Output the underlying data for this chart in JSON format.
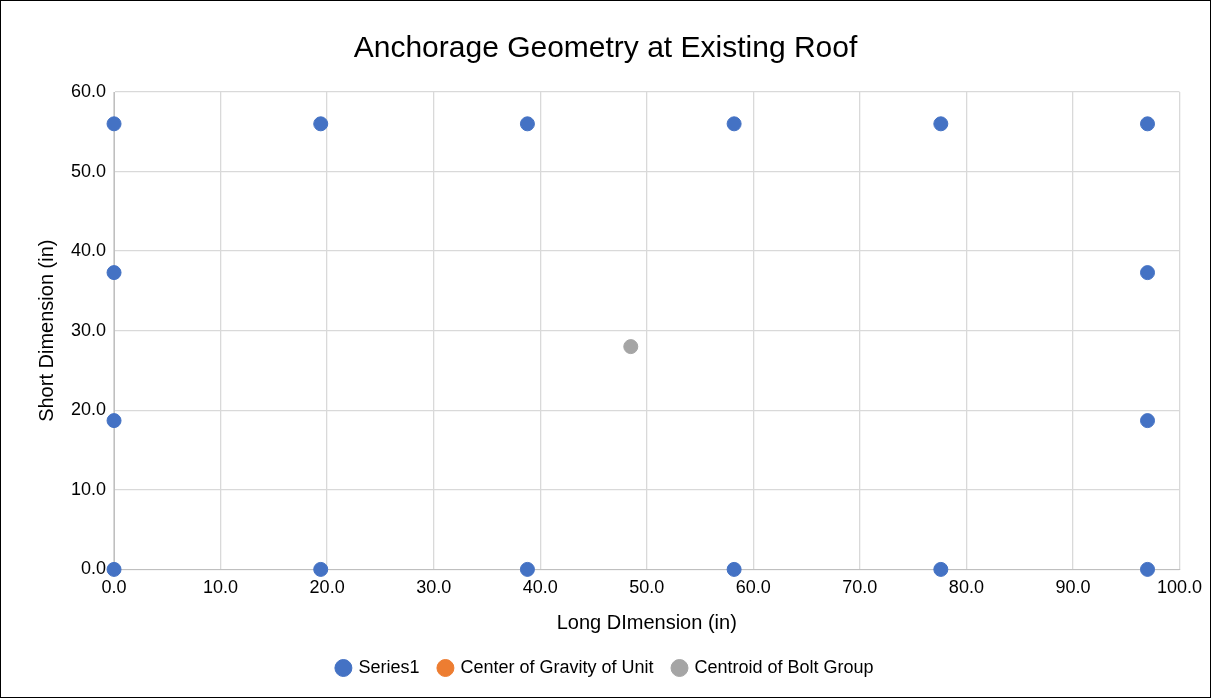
{
  "chart_data": {
    "type": "scatter",
    "title": "Anchorage Geometry at Existing Roof",
    "xlabel": "Long DImension (in)",
    "ylabel": "Short Dimension (in)",
    "xlim": [
      0,
      100
    ],
    "ylim": [
      0,
      60
    ],
    "xticks": [
      {
        "value": 0,
        "label": "0.0"
      },
      {
        "value": 10,
        "label": "10.0"
      },
      {
        "value": 20,
        "label": "20.0"
      },
      {
        "value": 30,
        "label": "30.0"
      },
      {
        "value": 40,
        "label": "40.0"
      },
      {
        "value": 50,
        "label": "50.0"
      },
      {
        "value": 60,
        "label": "60.0"
      },
      {
        "value": 70,
        "label": "70.0"
      },
      {
        "value": 80,
        "label": "80.0"
      },
      {
        "value": 90,
        "label": "90.0"
      },
      {
        "value": 100,
        "label": "100.0"
      }
    ],
    "yticks": [
      {
        "value": 0,
        "label": "0.0"
      },
      {
        "value": 10,
        "label": "10.0"
      },
      {
        "value": 20,
        "label": "20.0"
      },
      {
        "value": 30,
        "label": "30.0"
      },
      {
        "value": 40,
        "label": "40.0"
      },
      {
        "value": 50,
        "label": "50.0"
      },
      {
        "value": 60,
        "label": "60.0"
      }
    ],
    "grid": true,
    "legend": "bottom",
    "marker": "circle",
    "series": [
      {
        "name": "Series1",
        "color": "#4472c4",
        "x": [
          0,
          19.4,
          38.8,
          58.2,
          77.6,
          97.0,
          97.0,
          97.0,
          97.0,
          77.6,
          58.2,
          38.8,
          19.4,
          0,
          0,
          0
        ],
        "values": [
          0,
          0,
          0,
          0,
          0,
          0,
          18.7,
          37.3,
          56.0,
          56.0,
          56.0,
          56.0,
          56.0,
          56.0,
          37.3,
          18.7
        ]
      },
      {
        "name": "Center of Gravity of Unit",
        "color": "#ed7d31",
        "values": [
          null
        ]
      },
      {
        "name": "Centroid of Bolt Group",
        "color": "#a5a5a5",
        "x": [
          48.5
        ],
        "values": [
          28.0
        ]
      }
    ]
  }
}
